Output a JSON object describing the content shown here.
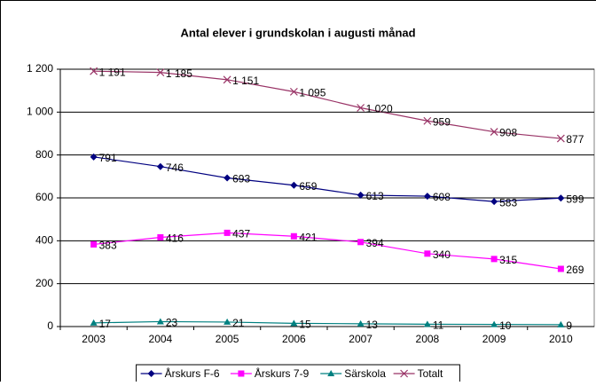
{
  "chart_data": {
    "type": "line",
    "title": "Antal elever i grundskolan i augusti månad",
    "categories": [
      "2003",
      "2004",
      "2005",
      "2006",
      "2007",
      "2008",
      "2009",
      "2010"
    ],
    "series": [
      {
        "name": "Årskurs F-6",
        "color": "#000080",
        "marker": "diamond",
        "values": [
          791,
          746,
          693,
          659,
          613,
          608,
          583,
          599
        ]
      },
      {
        "name": "Årskurs 7-9",
        "color": "#ff00ff",
        "marker": "square",
        "values": [
          383,
          416,
          437,
          421,
          394,
          340,
          315,
          269
        ]
      },
      {
        "name": "Särskola",
        "color": "#008080",
        "marker": "triangle",
        "values": [
          17,
          23,
          21,
          15,
          13,
          11,
          10,
          9
        ]
      },
      {
        "name": "Totalt",
        "color": "#993366",
        "marker": "x",
        "values": [
          1191,
          1185,
          1151,
          1095,
          1020,
          959,
          908,
          877
        ],
        "value_labels": [
          "1 191",
          "1 185",
          "1 151",
          "1 095",
          "1 020",
          "959",
          "908",
          "877"
        ]
      }
    ],
    "ylim": [
      0,
      1200
    ],
    "yticks": [
      0,
      200,
      400,
      600,
      800,
      {
        "value": 1000,
        "label": "1 000"
      },
      {
        "value": 1200,
        "label": "1 200"
      }
    ],
    "grid": true,
    "legend": "bottom"
  }
}
